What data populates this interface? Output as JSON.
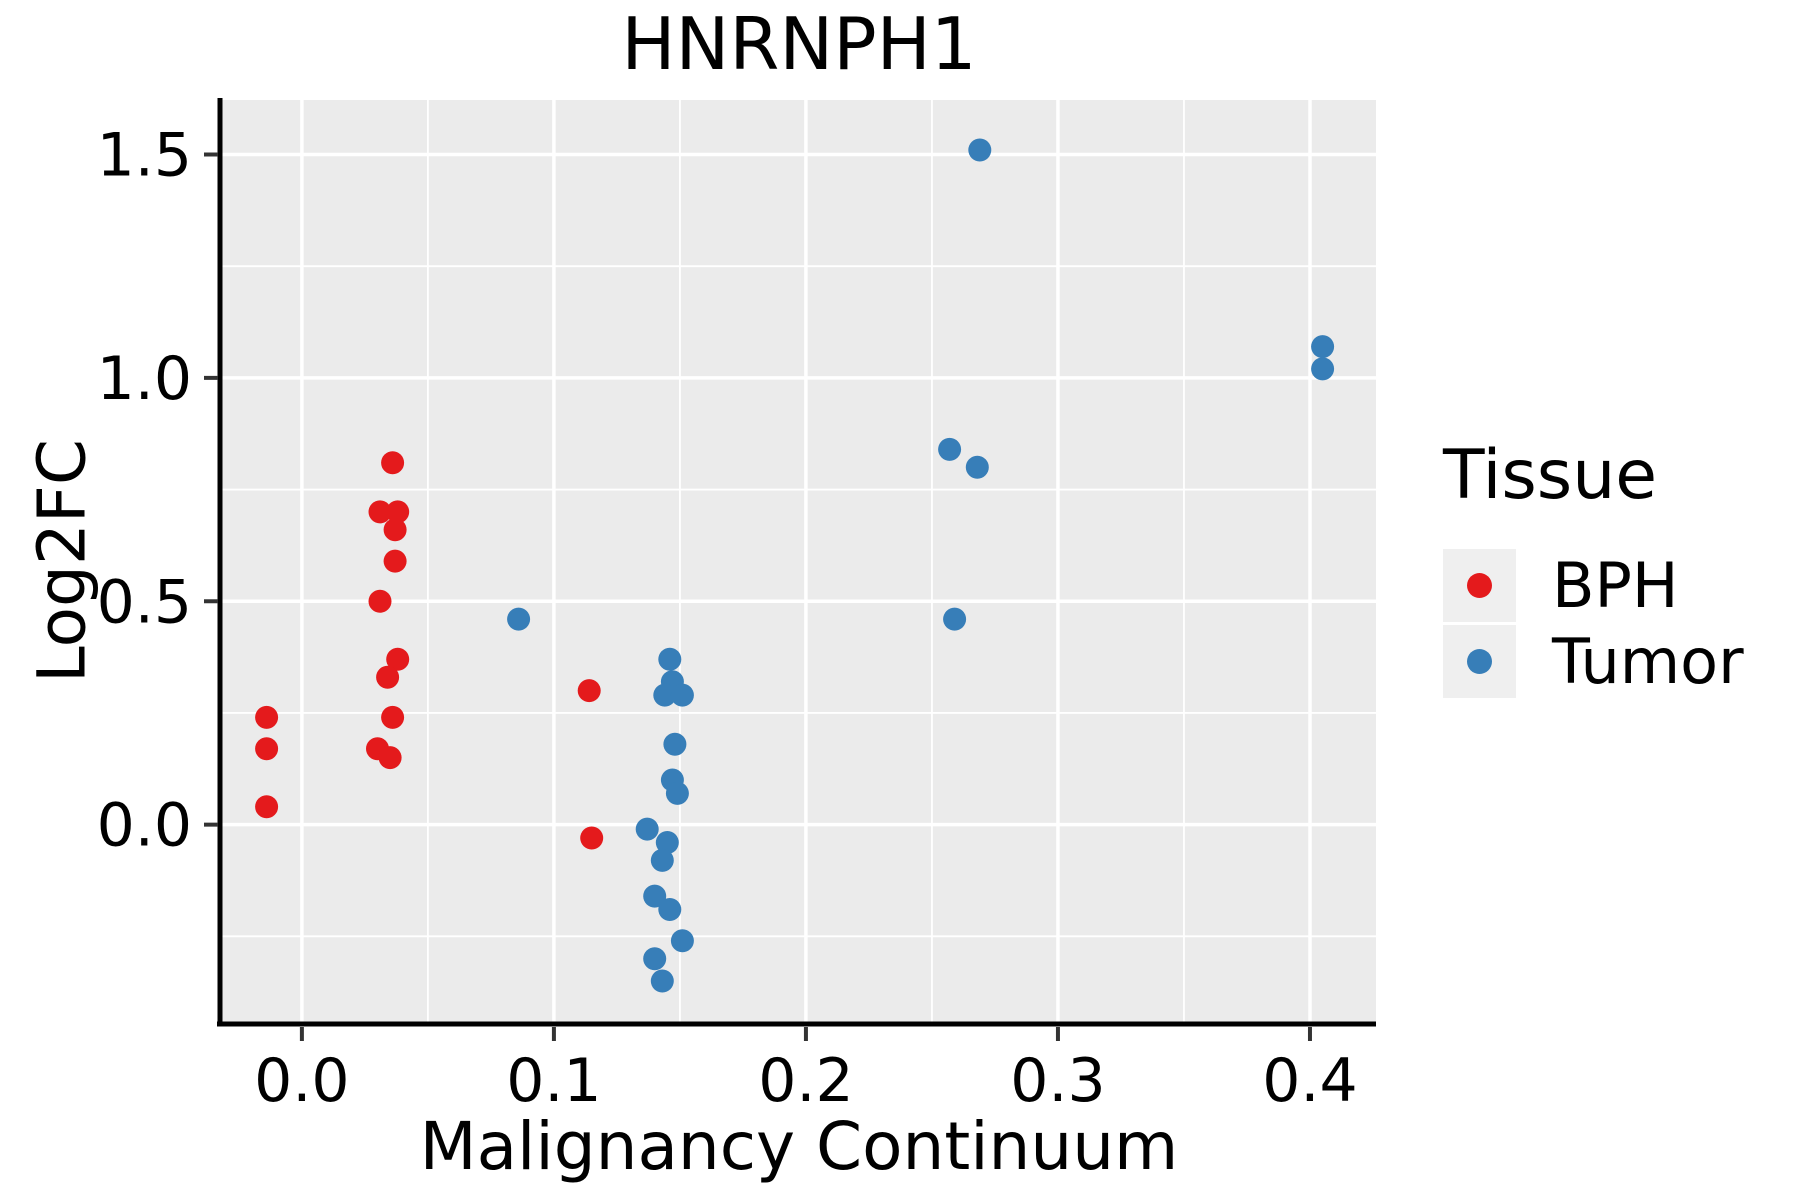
{
  "chart_data": {
    "type": "scatter",
    "title": "HNRNPH1",
    "xlabel": "Malignancy Continuum",
    "ylabel": "Log2FC",
    "x_ticks": [
      0.0,
      0.1,
      0.2,
      0.3,
      0.4
    ],
    "x_tick_labels": [
      "0.0",
      "0.1",
      "0.2",
      "0.3",
      "0.4"
    ],
    "y_ticks": [
      0.0,
      0.5,
      1.0,
      1.5
    ],
    "y_tick_labels": [
      "0.0",
      "0.5",
      "1.0",
      "1.5"
    ],
    "x_minor_ticks": [
      0.05,
      0.15,
      0.25,
      0.35
    ],
    "y_minor_ticks": [
      -0.25,
      0.25,
      0.75,
      1.25
    ],
    "xlim": [
      -0.0317,
      0.4262
    ],
    "ylim": [
      -0.444,
      1.622
    ],
    "grid": true,
    "legend_position": "right",
    "panel_bg": "#ebebeb",
    "grid_color": "#ffffff",
    "axis_color": "#000000",
    "tick_color": "#333333",
    "text_color": "#000000",
    "marker_radius": 11.5,
    "legend": {
      "title": "Tissue",
      "key_bg": "#efefef",
      "entries": [
        {
          "label": "BPH",
          "color": "#e41a1c"
        },
        {
          "label": "Tumor",
          "color": "#377eb8"
        }
      ]
    },
    "series": [
      {
        "name": "BPH",
        "color": "#e41a1c",
        "points": [
          [
            -0.014,
            0.24
          ],
          [
            -0.014,
            0.17
          ],
          [
            -0.014,
            0.04
          ],
          [
            0.036,
            0.81
          ],
          [
            0.031,
            0.7
          ],
          [
            0.038,
            0.7
          ],
          [
            0.037,
            0.66
          ],
          [
            0.037,
            0.59
          ],
          [
            0.031,
            0.5
          ],
          [
            0.038,
            0.37
          ],
          [
            0.034,
            0.33
          ],
          [
            0.036,
            0.24
          ],
          [
            0.03,
            0.17
          ],
          [
            0.035,
            0.15
          ],
          [
            0.114,
            0.3
          ],
          [
            0.115,
            -0.03
          ]
        ]
      },
      {
        "name": "Tumor",
        "color": "#377eb8",
        "points": [
          [
            0.086,
            0.46
          ],
          [
            0.146,
            0.37
          ],
          [
            0.147,
            0.32
          ],
          [
            0.144,
            0.29
          ],
          [
            0.151,
            0.29
          ],
          [
            0.148,
            0.18
          ],
          [
            0.147,
            0.1
          ],
          [
            0.149,
            0.07
          ],
          [
            0.137,
            -0.01
          ],
          [
            0.145,
            -0.04
          ],
          [
            0.143,
            -0.08
          ],
          [
            0.14,
            -0.16
          ],
          [
            0.146,
            -0.19
          ],
          [
            0.151,
            -0.26
          ],
          [
            0.14,
            -0.3
          ],
          [
            0.143,
            -0.35
          ],
          [
            0.257,
            0.84
          ],
          [
            0.268,
            0.8
          ],
          [
            0.259,
            0.46
          ],
          [
            0.269,
            1.51
          ],
          [
            0.405,
            1.07
          ],
          [
            0.405,
            1.02
          ]
        ]
      }
    ]
  }
}
